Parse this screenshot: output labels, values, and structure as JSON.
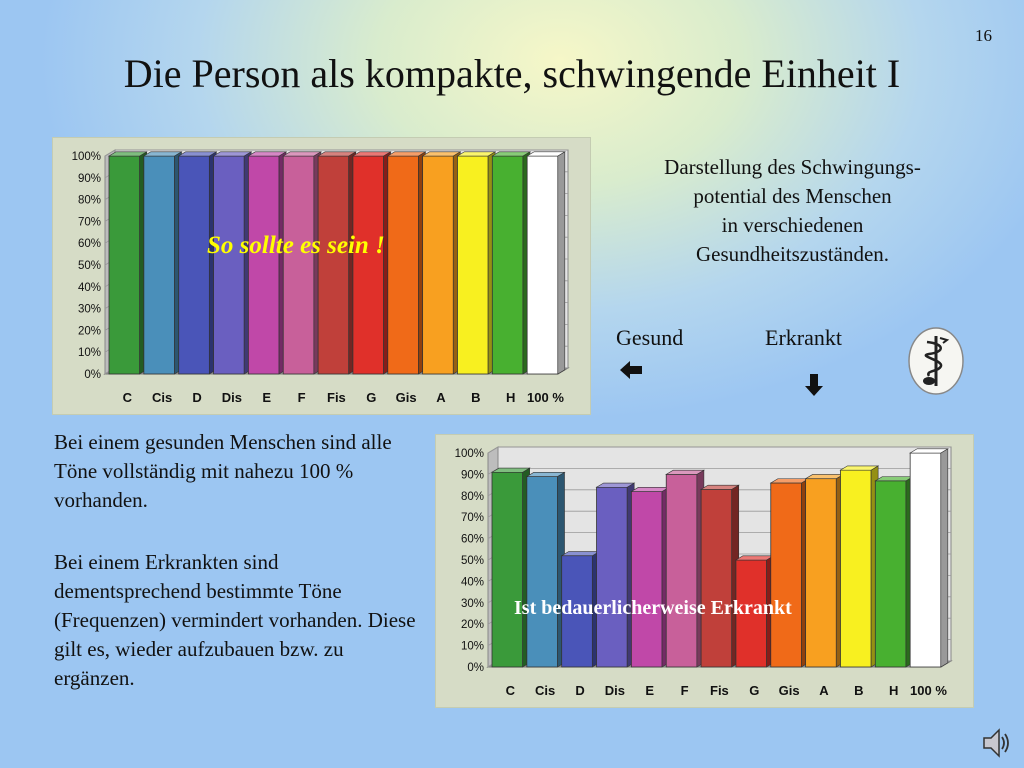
{
  "slide_number": "16",
  "title": "Die Person als kompakte, schwingende Einheit I",
  "description": "Darstellung des Schwingungs-potential des Menschen in verschiedenen Gesundheitszuständen.",
  "description_lines": [
    "Darstellung des Schwingungs-",
    "potential des Menschen",
    "in verschiedenen",
    "Gesundheitszuständen."
  ],
  "label_healthy": "Gesund",
  "label_sick": "Erkrankt",
  "arrow_left_glyph": "🡄",
  "arrow_down_glyph": "🡇",
  "paragraph_1": "Bei einem gesunden Menschen sind alle Töne vollständig  mit nahezu 100 %  vorhanden.",
  "paragraph_2": "Bei einem Erkrankten sind dementsprechend bestimmte Töne (Frequenzen) vermindert vorhanden. Diese gilt es, wieder aufzubauen bzw. zu ergänzen.",
  "icons": {
    "caduceus": "caduceus-icon",
    "speaker": "speaker-icon"
  },
  "chart_data": [
    {
      "type": "bar",
      "title": "",
      "annotation": "So sollte es sein !",
      "categories": [
        "C",
        "Cis",
        "D",
        "Dis",
        "E",
        "F",
        "Fis",
        "G",
        "Gis",
        "A",
        "B",
        "H",
        "100 %"
      ],
      "values": [
        100,
        100,
        100,
        100,
        100,
        100,
        100,
        100,
        100,
        100,
        100,
        100,
        100
      ],
      "colors": [
        "#3a9a3a",
        "#4a8fba",
        "#4a55b8",
        "#6a5fc0",
        "#c048a8",
        "#c8609a",
        "#c0403a",
        "#e0302a",
        "#f06a18",
        "#f8a020",
        "#f8f020",
        "#48b030",
        "#ffffff"
      ],
      "yticks": [
        "0%",
        "10%",
        "20%",
        "30%",
        "40%",
        "50%",
        "60%",
        "70%",
        "80%",
        "90%",
        "100%"
      ],
      "ylim": [
        0,
        100
      ],
      "grid": true
    },
    {
      "type": "bar",
      "title": "",
      "annotation": "Ist bedauerlicherweise Erkrankt",
      "categories": [
        "C",
        "Cis",
        "D",
        "Dis",
        "E",
        "F",
        "Fis",
        "G",
        "Gis",
        "A",
        "B",
        "H",
        "100 %"
      ],
      "values": [
        91,
        89,
        52,
        84,
        82,
        90,
        83,
        50,
        86,
        88,
        92,
        87,
        100
      ],
      "colors": [
        "#3a9a3a",
        "#4a8fba",
        "#4a55b8",
        "#6a5fc0",
        "#c048a8",
        "#c8609a",
        "#c0403a",
        "#e0302a",
        "#f06a18",
        "#f8a020",
        "#f8f020",
        "#48b030",
        "#ffffff"
      ],
      "yticks": [
        "0%",
        "10%",
        "20%",
        "30%",
        "40%",
        "50%",
        "60%",
        "70%",
        "80%",
        "90%",
        "100%"
      ],
      "ylim": [
        0,
        100
      ],
      "grid": true
    }
  ]
}
